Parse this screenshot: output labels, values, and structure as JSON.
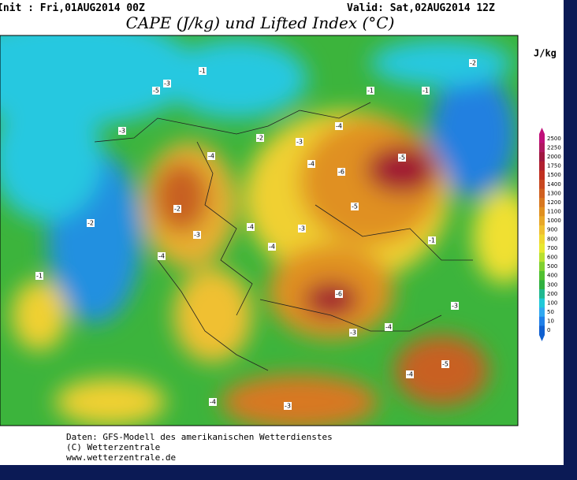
{
  "header": {
    "init": "Init : Fri,01AUG2014 00Z",
    "valid": "Valid: Sat,02AUG2014 12Z",
    "title": "CAPE (J/kg) und Lifted Index (°C)"
  },
  "colorbar": {
    "unit": "J/kg",
    "levels": [
      2500,
      2250,
      2000,
      1750,
      1500,
      1400,
      1300,
      1200,
      1100,
      1000,
      900,
      800,
      700,
      600,
      500,
      400,
      300,
      200,
      100,
      50,
      10,
      0
    ],
    "colors": [
      "#c0107a",
      "#b01860",
      "#a01840",
      "#b02030",
      "#c03020",
      "#c84820",
      "#d06020",
      "#d87820",
      "#e09020",
      "#e8a828",
      "#f0c030",
      "#f0d830",
      "#e8e830",
      "#b8e030",
      "#80d030",
      "#50c030",
      "#30b040",
      "#20b890",
      "#20c8d8",
      "#30a8f0",
      "#2080e8",
      "#1060d0"
    ]
  },
  "lifted_index_labels": [
    -1,
    -3,
    -5,
    -3,
    -4,
    -2,
    -3,
    -4,
    -5,
    -6,
    -4,
    -5,
    -3,
    -4,
    -3,
    -4,
    -4,
    -6,
    -3,
    -4,
    -1,
    -3,
    -5,
    -4,
    -3,
    -4,
    -2,
    -1,
    -2,
    -1,
    -1,
    -2
  ],
  "footer": [
    "Daten: GFS-Modell des amerikanischen Wetterdienstes",
    "(C) Wetterzentrale",
    "www.wetterzentrale.de"
  ]
}
